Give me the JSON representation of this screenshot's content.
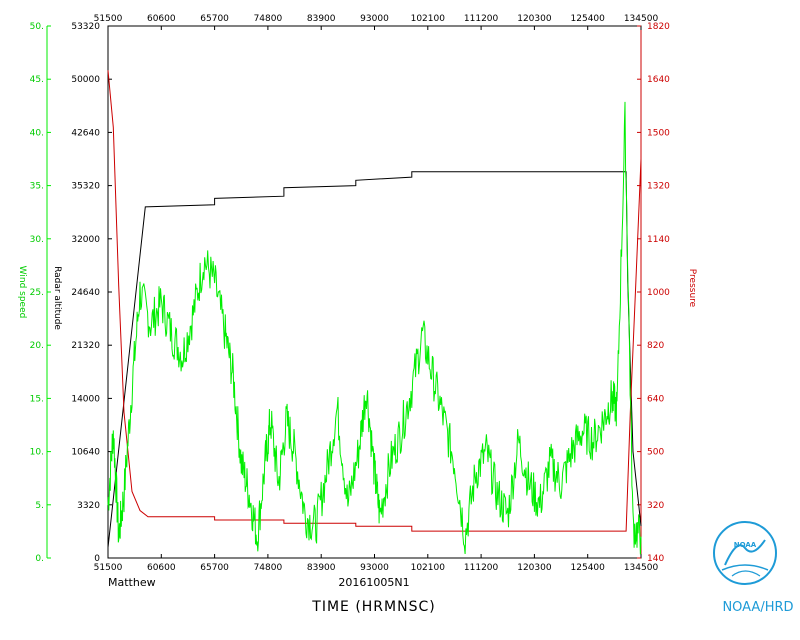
{
  "chart_data": {
    "type": "line",
    "storm_name": "Matthew",
    "flight_id": "20161005N1",
    "xlabel": "TIME (HRMNSC)",
    "credit": "NOAA/HRD",
    "noaa_logo_text": "NOAA",
    "x_ticks": [
      "51500",
      "60600",
      "65700",
      "74800",
      "83900",
      "93000",
      "102100",
      "111200",
      "120300",
      "125400",
      "134500"
    ],
    "axes": {
      "wind": {
        "label": "Wind speed",
        "ylim": [
          0,
          50
        ],
        "ticks": [
          "0.",
          "5.",
          "10.",
          "15.",
          "20.",
          "25.",
          "30.",
          "35.",
          "40.",
          "45.",
          "50."
        ],
        "color": "#00ee00"
      },
      "altitude": {
        "label": "Radar altitude",
        "ticks": [
          "0",
          "3320",
          "10640",
          "14000",
          "21320",
          "24640",
          "32000",
          "35320",
          "42640",
          "50000",
          "53320"
        ],
        "color": "#000000"
      },
      "pressure": {
        "label": "Pressure",
        "ylim": [
          140,
          1820
        ],
        "ticks": [
          "140",
          "320",
          "500",
          "640",
          "820",
          "1000",
          "1140",
          "1320",
          "1500",
          "1640",
          "1820"
        ],
        "color": "#cc0000"
      }
    },
    "series": [
      {
        "name": "Wind speed",
        "axis": "wind",
        "color": "#00ee00",
        "x": [
          0,
          0.1,
          0.2,
          0.3,
          0.45,
          0.6,
          0.8,
          1.0,
          1.2,
          1.4,
          1.6,
          1.8,
          2.0,
          2.2,
          2.35,
          2.5,
          2.65,
          2.8,
          2.95,
          3.05,
          3.2,
          3.35,
          3.5,
          3.7,
          3.9,
          4.1,
          4.3,
          4.5,
          4.7,
          4.85,
          5.0,
          5.1,
          5.3,
          5.5,
          5.7,
          5.9,
          6.1,
          6.3,
          6.5,
          6.7,
          6.9,
          7.1,
          7.3,
          7.5,
          7.7,
          7.9,
          8.1,
          8.3,
          8.5,
          8.7,
          8.9,
          9.1,
          9.3,
          9.45,
          9.55,
          9.7,
          9.85,
          10.0
        ],
        "values": [
          5,
          12,
          2,
          6,
          16,
          25,
          22,
          24,
          21,
          19,
          23,
          28,
          26,
          21,
          17,
          9,
          6,
          2,
          9,
          13,
          7,
          13,
          10,
          4,
          3,
          8,
          14,
          5,
          10,
          16,
          8,
          4,
          9,
          12,
          16,
          21,
          17,
          13,
          9,
          2,
          8,
          10,
          6,
          4,
          11,
          7,
          5,
          9,
          7,
          10,
          12,
          11,
          13,
          15,
          14,
          41,
          3,
          2
        ]
      },
      {
        "name": "Radar altitude",
        "axis": "altitude",
        "color": "#000000",
        "x": [
          0,
          0.7,
          0.7,
          2.0,
          2.0,
          3.3,
          3.3,
          4.65,
          4.65,
          5.7,
          5.7,
          9.72,
          9.75,
          9.85,
          10.0
        ],
        "values": [
          1,
          33,
          33,
          33.2,
          33.8,
          34,
          34.8,
          35,
          35.5,
          35.8,
          36.3,
          36.3,
          26,
          10,
          3
        ],
        "value_unit": "fraction of axis height x 50"
      },
      {
        "name": "Pressure",
        "axis": "pressure",
        "color": "#cc0000",
        "x": [
          0,
          0.1,
          0.2,
          0.3,
          0.45,
          0.6,
          0.75,
          2.0,
          2.0,
          3.3,
          3.3,
          4.65,
          4.65,
          5.7,
          5.7,
          9.72,
          9.8,
          9.9,
          10.0
        ],
        "values": [
          1680,
          1500,
          1000,
          600,
          350,
          290,
          270,
          270,
          260,
          260,
          250,
          250,
          240,
          240,
          225,
          225,
          600,
          1000,
          1400
        ]
      }
    ]
  }
}
